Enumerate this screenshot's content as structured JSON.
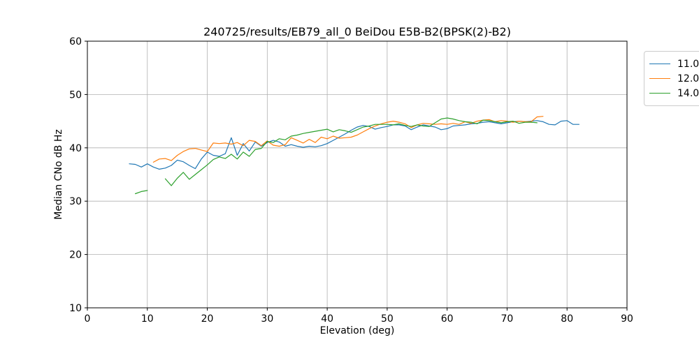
{
  "figure": {
    "title": "240725/results/EB79_all_0 BeiDou E5B-B2(BPSK(2)-B2)",
    "background_color": "#ffffff",
    "grid_color": "#b0b0b0",
    "spine_color": "#000000",
    "legend_border_color": "#cccccc"
  },
  "chart_data": {
    "type": "line",
    "title": "240725/results/EB79_all_0 BeiDou E5B-B2(BPSK(2)-B2)",
    "xlabel": "Elevation (deg)",
    "ylabel": "Median CNo dB Hz",
    "xlim": [
      0,
      90
    ],
    "ylim": [
      10,
      60
    ],
    "x_ticks": [
      0,
      10,
      20,
      30,
      40,
      50,
      60,
      70,
      80,
      90
    ],
    "y_ticks": [
      10,
      20,
      30,
      40,
      50,
      60
    ],
    "grid": true,
    "legend_position": "outside-upper-right",
    "series": [
      {
        "name": "11.0",
        "color": "#1f77b4",
        "segments": [
          {
            "x": [
              7,
              8,
              9,
              10,
              11,
              12,
              13,
              14,
              15,
              16,
              17,
              18,
              19,
              20,
              21,
              22,
              23,
              24,
              25,
              26,
              27,
              28,
              29,
              30,
              31,
              32,
              33,
              34,
              35,
              36,
              37,
              38,
              39,
              40,
              41,
              42,
              43,
              44,
              45,
              46,
              47,
              48,
              49,
              50,
              51,
              52,
              53,
              54,
              55,
              56,
              57,
              58,
              59,
              60,
              61,
              62,
              63,
              64,
              65,
              66,
              67,
              68,
              69,
              70,
              71,
              72,
              73,
              74,
              75,
              76,
              77,
              78,
              79,
              80,
              81,
              82
            ],
            "y": [
              37.0,
              36.9,
              36.4,
              37.0,
              36.4,
              36.0,
              36.2,
              36.7,
              37.7,
              37.4,
              36.7,
              36.1,
              37.9,
              39.2,
              38.6,
              38.4,
              38.9,
              41.9,
              38.6,
              40.8,
              39.4,
              41.1,
              40.3,
              41.0,
              41.4,
              41.1,
              40.3,
              40.6,
              40.3,
              40.1,
              40.3,
              40.2,
              40.4,
              40.8,
              41.4,
              42.0,
              42.6,
              43.3,
              43.9,
              44.2,
              44.0,
              43.5,
              43.8,
              44.0,
              44.3,
              44.3,
              44.1,
              43.4,
              43.9,
              44.3,
              44.1,
              43.9,
              43.4,
              43.6,
              44.1,
              44.2,
              44.3,
              44.5,
              44.6,
              44.8,
              44.9,
              44.7,
              44.5,
              44.7,
              44.9,
              45.0,
              44.9,
              45.0,
              45.1,
              44.9,
              44.4,
              44.3,
              45.0,
              45.1,
              44.4,
              44.4
            ]
          }
        ]
      },
      {
        "name": "12.0",
        "color": "#ff7f0e",
        "segments": [
          {
            "x": [
              11,
              12,
              13,
              14,
              15,
              16,
              17,
              18,
              19,
              20,
              21,
              22,
              23,
              24,
              25,
              26,
              27,
              28,
              29,
              30,
              31,
              32,
              33,
              34,
              35,
              36,
              37,
              38,
              39,
              40,
              41,
              42,
              43,
              44,
              45,
              46,
              47,
              48,
              49,
              50,
              51,
              52,
              53,
              54,
              55,
              56,
              57,
              58,
              59,
              60,
              61,
              62,
              63,
              64,
              65,
              66,
              67,
              68,
              69,
              70,
              71,
              72,
              73,
              74,
              75,
              76
            ],
            "y": [
              37.3,
              37.9,
              38.0,
              37.6,
              38.6,
              39.3,
              39.8,
              39.9,
              39.6,
              39.3,
              40.9,
              40.8,
              40.9,
              40.7,
              41.0,
              40.4,
              41.4,
              41.2,
              40.4,
              41.3,
              40.5,
              40.3,
              40.6,
              41.9,
              41.4,
              40.9,
              41.6,
              41.0,
              42.0,
              41.7,
              42.2,
              41.8,
              41.9,
              42.0,
              42.4,
              43.0,
              43.6,
              44.1,
              44.5,
              44.8,
              45.0,
              44.8,
              44.5,
              43.8,
              44.3,
              44.6,
              44.5,
              44.4,
              44.5,
              44.4,
              44.6,
              44.4,
              44.9,
              44.6,
              45.0,
              45.2,
              45.3,
              44.9,
              45.1,
              45.0,
              44.8,
              45.0,
              44.9,
              44.9,
              45.8,
              45.9
            ]
          }
        ]
      },
      {
        "name": "14.0",
        "color": "#2ca02c",
        "segments": [
          {
            "x": [
              8,
              9,
              10
            ],
            "y": [
              31.4,
              31.8,
              32.0
            ]
          },
          {
            "x": [
              13,
              14,
              15,
              16,
              17,
              18,
              19,
              20,
              21,
              22,
              23,
              24,
              25,
              26,
              27,
              28,
              29,
              30,
              31,
              32,
              33,
              34,
              35,
              36,
              37,
              38,
              39,
              40,
              41,
              42,
              43,
              44,
              45,
              46,
              47,
              48,
              49,
              50,
              51,
              52,
              53,
              54,
              55,
              56,
              57,
              58,
              59,
              60,
              61,
              62,
              63,
              64,
              65,
              66,
              67,
              68,
              69,
              70,
              71,
              72,
              73,
              74,
              75
            ],
            "y": [
              34.2,
              32.9,
              34.3,
              35.4,
              34.1,
              35.0,
              35.9,
              36.8,
              37.8,
              38.3,
              38.0,
              38.8,
              37.9,
              39.2,
              38.4,
              39.7,
              39.9,
              41.2,
              41.0,
              41.7,
              41.5,
              42.2,
              42.4,
              42.7,
              42.9,
              43.1,
              43.3,
              43.5,
              43.0,
              43.4,
              43.2,
              42.9,
              43.4,
              43.9,
              44.1,
              44.4,
              44.4,
              44.4,
              44.3,
              44.5,
              44.2,
              44.0,
              44.3,
              44.1,
              44.0,
              44.7,
              45.4,
              45.6,
              45.4,
              45.1,
              44.9,
              44.8,
              44.5,
              45.2,
              45.1,
              44.9,
              44.7,
              44.9,
              45.0,
              44.6,
              44.8,
              44.8,
              44.7
            ]
          }
        ]
      }
    ]
  }
}
